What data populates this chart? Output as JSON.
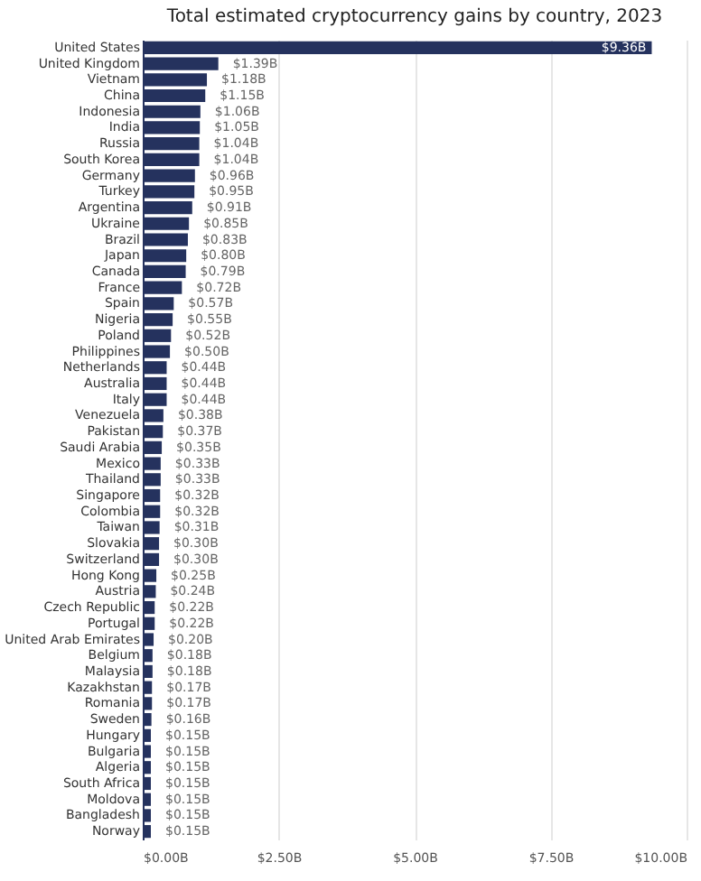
{
  "chart_data": {
    "type": "bar",
    "orientation": "horizontal",
    "title": "Total estimated cryptocurrency gains by country, 2023",
    "categories": [
      "United States",
      "United Kingdom",
      "Vietnam",
      "China",
      "Indonesia",
      "India",
      "Russia",
      "South Korea",
      "Germany",
      "Turkey",
      "Argentina",
      "Ukraine",
      "Brazil",
      "Japan",
      "Canada",
      "France",
      "Spain",
      "Nigeria",
      "Poland",
      "Philippines",
      "Netherlands",
      "Australia",
      "Italy",
      "Venezuela",
      "Pakistan",
      "Saudi Arabia",
      "Mexico",
      "Thailand",
      "Singapore",
      "Colombia",
      "Taiwan",
      "Slovakia",
      "Switzerland",
      "Hong Kong",
      "Austria",
      "Czech Republic",
      "Portugal",
      "United Arab Emirates",
      "Belgium",
      "Malaysia",
      "Kazakhstan",
      "Romania",
      "Sweden",
      "Hungary",
      "Bulgaria",
      "Algeria",
      "South Africa",
      "Moldova",
      "Bangladesh",
      "Norway"
    ],
    "values": [
      9.36,
      1.39,
      1.18,
      1.15,
      1.06,
      1.05,
      1.04,
      1.04,
      0.96,
      0.95,
      0.91,
      0.85,
      0.83,
      0.8,
      0.79,
      0.72,
      0.57,
      0.55,
      0.52,
      0.5,
      0.44,
      0.44,
      0.44,
      0.38,
      0.37,
      0.35,
      0.33,
      0.33,
      0.32,
      0.32,
      0.31,
      0.3,
      0.3,
      0.25,
      0.24,
      0.22,
      0.22,
      0.2,
      0.18,
      0.18,
      0.17,
      0.17,
      0.16,
      0.15,
      0.15,
      0.15,
      0.15,
      0.15,
      0.15,
      0.15
    ],
    "value_labels": [
      "$9.36B",
      "$1.39B",
      "$1.18B",
      "$1.15B",
      "$1.06B",
      "$1.05B",
      "$1.04B",
      "$1.04B",
      "$0.96B",
      "$0.95B",
      "$0.91B",
      "$0.85B",
      "$0.83B",
      "$0.80B",
      "$0.79B",
      "$0.72B",
      "$0.57B",
      "$0.55B",
      "$0.52B",
      "$0.50B",
      "$0.44B",
      "$0.44B",
      "$0.44B",
      "$0.38B",
      "$0.37B",
      "$0.35B",
      "$0.33B",
      "$0.33B",
      "$0.32B",
      "$0.32B",
      "$0.31B",
      "$0.30B",
      "$0.30B",
      "$0.25B",
      "$0.24B",
      "$0.22B",
      "$0.22B",
      "$0.20B",
      "$0.18B",
      "$0.18B",
      "$0.17B",
      "$0.17B",
      "$0.16B",
      "$0.15B",
      "$0.15B",
      "$0.15B",
      "$0.15B",
      "$0.15B",
      "$0.15B",
      "$0.15B"
    ],
    "color": "#25325e",
    "xlim": [
      0,
      10
    ],
    "xticks": [
      {
        "value": 0,
        "label": "$0.00B"
      },
      {
        "value": 2.5,
        "label": "$2.50B"
      },
      {
        "value": 5,
        "label": "$5.00B"
      },
      {
        "value": 7.5,
        "label": "$7.50B"
      },
      {
        "value": 10,
        "label": "$10.00B"
      }
    ],
    "grid": "x"
  }
}
